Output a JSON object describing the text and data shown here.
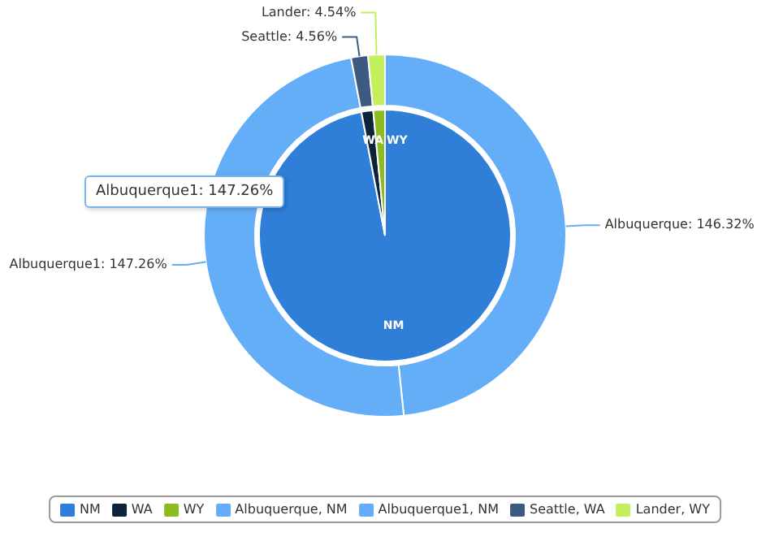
{
  "chart_data": [
    {
      "type": "pie",
      "categories": [
        "NM",
        "WA",
        "WY"
      ],
      "values": [
        96.99,
        1.51,
        1.5
      ],
      "colors": [
        "#2f7ed8",
        "#0d233a",
        "#8bbc21"
      ],
      "legend": "bottom"
    },
    {
      "type": "donut",
      "categories": [
        "Albuquerque, NM",
        "Albuquerque1, NM",
        "Seattle, WA",
        "Lander, WY"
      ],
      "values": [
        146.32,
        147.26,
        4.56,
        4.54
      ],
      "colors": [
        "#64aef7",
        "#64aef7",
        "#3d5a80",
        "#c4ef5c"
      ],
      "value_labels": [
        "Albuquerque: 146.32%",
        "Albuquerque1: 147.26%",
        "Seattle: 4.56%",
        "Lander: 4.54%"
      ],
      "annotations": [
        "Albuquerque1: 147.26%"
      ],
      "legend": "bottom"
    }
  ]
}
